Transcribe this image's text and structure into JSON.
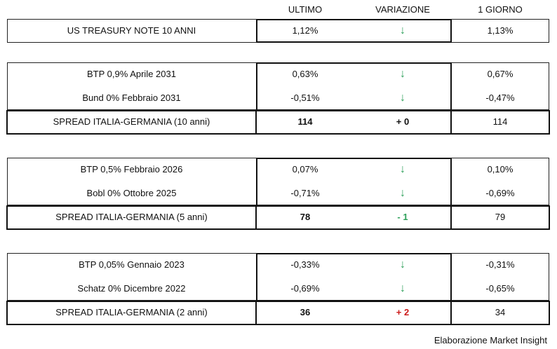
{
  "header": {
    "ultimo": "ULTIMO",
    "variazione": "VARIAZIONE",
    "giorno": "1 GIORNO"
  },
  "colors": {
    "down": "#2ea05a",
    "up": "#cc1a1a",
    "neutral": "#111111"
  },
  "blocks": [
    {
      "rows": [
        {
          "label": "US TREASURY NOTE 10 ANNI",
          "ultimo": "1,12%",
          "variazione_icon": "arrow-down-icon",
          "giorno": "1,13%"
        }
      ]
    },
    {
      "rows": [
        {
          "label": "BTP 0,9% Aprile 2031",
          "ultimo": "0,63%",
          "variazione_icon": "arrow-down-icon",
          "giorno": "0,67%"
        },
        {
          "label": "Bund 0% Febbraio 2031",
          "ultimo": "-0,51%",
          "variazione_icon": "arrow-down-icon",
          "giorno": "-0,47%"
        }
      ],
      "spread": {
        "label": "SPREAD ITALIA-GERMANIA (10 anni)",
        "ultimo": "114",
        "variazione": "+ 0",
        "tone": "neutral",
        "giorno": "114"
      }
    },
    {
      "rows": [
        {
          "label": "BTP 0,5% Febbraio 2026",
          "ultimo": "0,07%",
          "variazione_icon": "arrow-down-icon",
          "giorno": "0,10%"
        },
        {
          "label": "Bobl 0% Ottobre 2025",
          "ultimo": "-0,71%",
          "variazione_icon": "arrow-down-icon",
          "giorno": "-0,69%"
        }
      ],
      "spread": {
        "label": "SPREAD ITALIA-GERMANIA (5 anni)",
        "ultimo": "78",
        "variazione": "- 1",
        "tone": "down",
        "giorno": "79"
      }
    },
    {
      "rows": [
        {
          "label": "BTP 0,05% Gennaio 2023",
          "ultimo": "-0,33%",
          "variazione_icon": "arrow-down-icon",
          "giorno": "-0,31%"
        },
        {
          "label": "Schatz 0% Dicembre 2022",
          "ultimo": "-0,69%",
          "variazione_icon": "arrow-down-icon",
          "giorno": "-0,65%"
        }
      ],
      "spread": {
        "label": "SPREAD ITALIA-GERMANIA (2 anni)",
        "ultimo": "36",
        "variazione": "+ 2",
        "tone": "up",
        "giorno": "34"
      }
    }
  ],
  "footer": "Elaborazione Market Insight"
}
